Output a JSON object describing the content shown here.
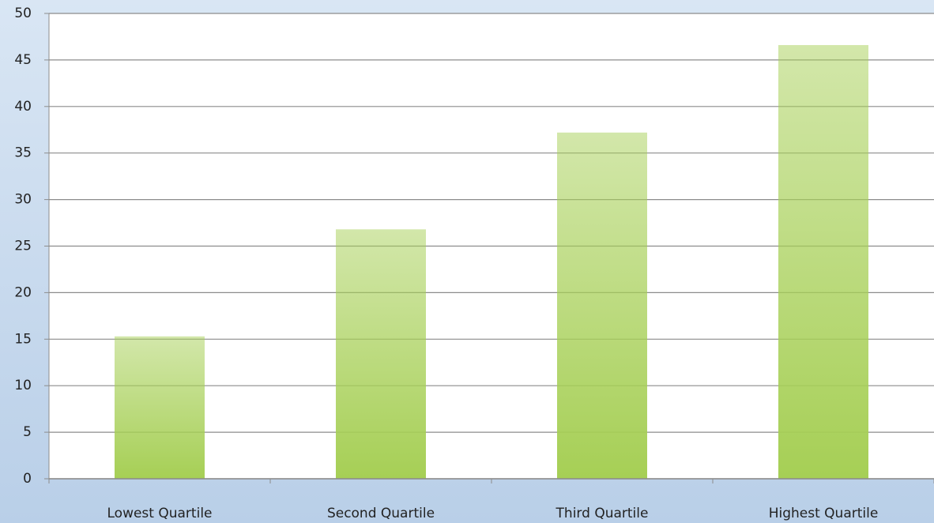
{
  "chart_data": {
    "type": "bar",
    "categories": [
      "Lowest Quartile",
      "Second Quartile",
      "Third Quartile",
      "Highest Quartile"
    ],
    "values": [
      15.3,
      26.8,
      37.2,
      46.6
    ],
    "color": "#a6cf55",
    "ylim": [
      0,
      50
    ],
    "yticks": [
      0,
      5,
      10,
      15,
      20,
      25,
      30,
      35,
      40,
      45,
      50
    ],
    "grid": true
  }
}
